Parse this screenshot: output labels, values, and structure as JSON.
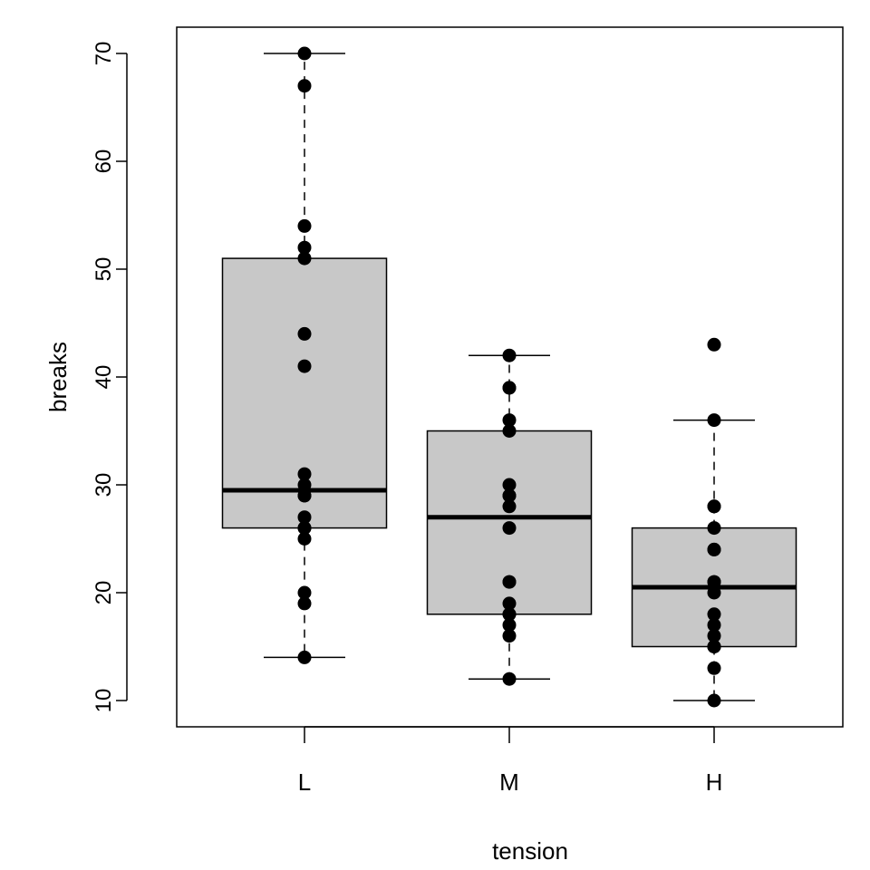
{
  "chart_data": {
    "type": "boxplot",
    "title": "",
    "xlabel": "tension",
    "ylabel": "breaks",
    "ylim": [
      7.6,
      72.4
    ],
    "yticks": [
      10,
      20,
      30,
      40,
      50,
      60,
      70
    ],
    "ytick_labels": [
      "10",
      "20",
      "30",
      "40",
      "50",
      "60",
      "70"
    ],
    "categories": [
      "L",
      "M",
      "H"
    ],
    "box_fill": "#c8c8c8",
    "point_color": "#000000",
    "boxes": [
      {
        "name": "L",
        "whisker_low": 14,
        "q1": 26,
        "median": 29.5,
        "q3": 51,
        "whisker_high": 70,
        "points": [
          26,
          30,
          54,
          25,
          70,
          52,
          51,
          26,
          67,
          27,
          14,
          29,
          19,
          29,
          31,
          41,
          20,
          44
        ]
      },
      {
        "name": "M",
        "whisker_low": 12,
        "q1": 18,
        "median": 27,
        "q3": 35,
        "whisker_high": 42,
        "points": [
          18,
          21,
          29,
          17,
          12,
          18,
          35,
          30,
          36,
          42,
          26,
          19,
          16,
          39,
          28,
          21,
          39,
          29
        ]
      },
      {
        "name": "H",
        "whisker_low": 10,
        "q1": 15,
        "median": 20.5,
        "q3": 26,
        "whisker_high": 36,
        "points": [
          36,
          21,
          24,
          18,
          10,
          43,
          28,
          15,
          26,
          20,
          21,
          24,
          17,
          13,
          15,
          15,
          16,
          28
        ]
      }
    ]
  }
}
